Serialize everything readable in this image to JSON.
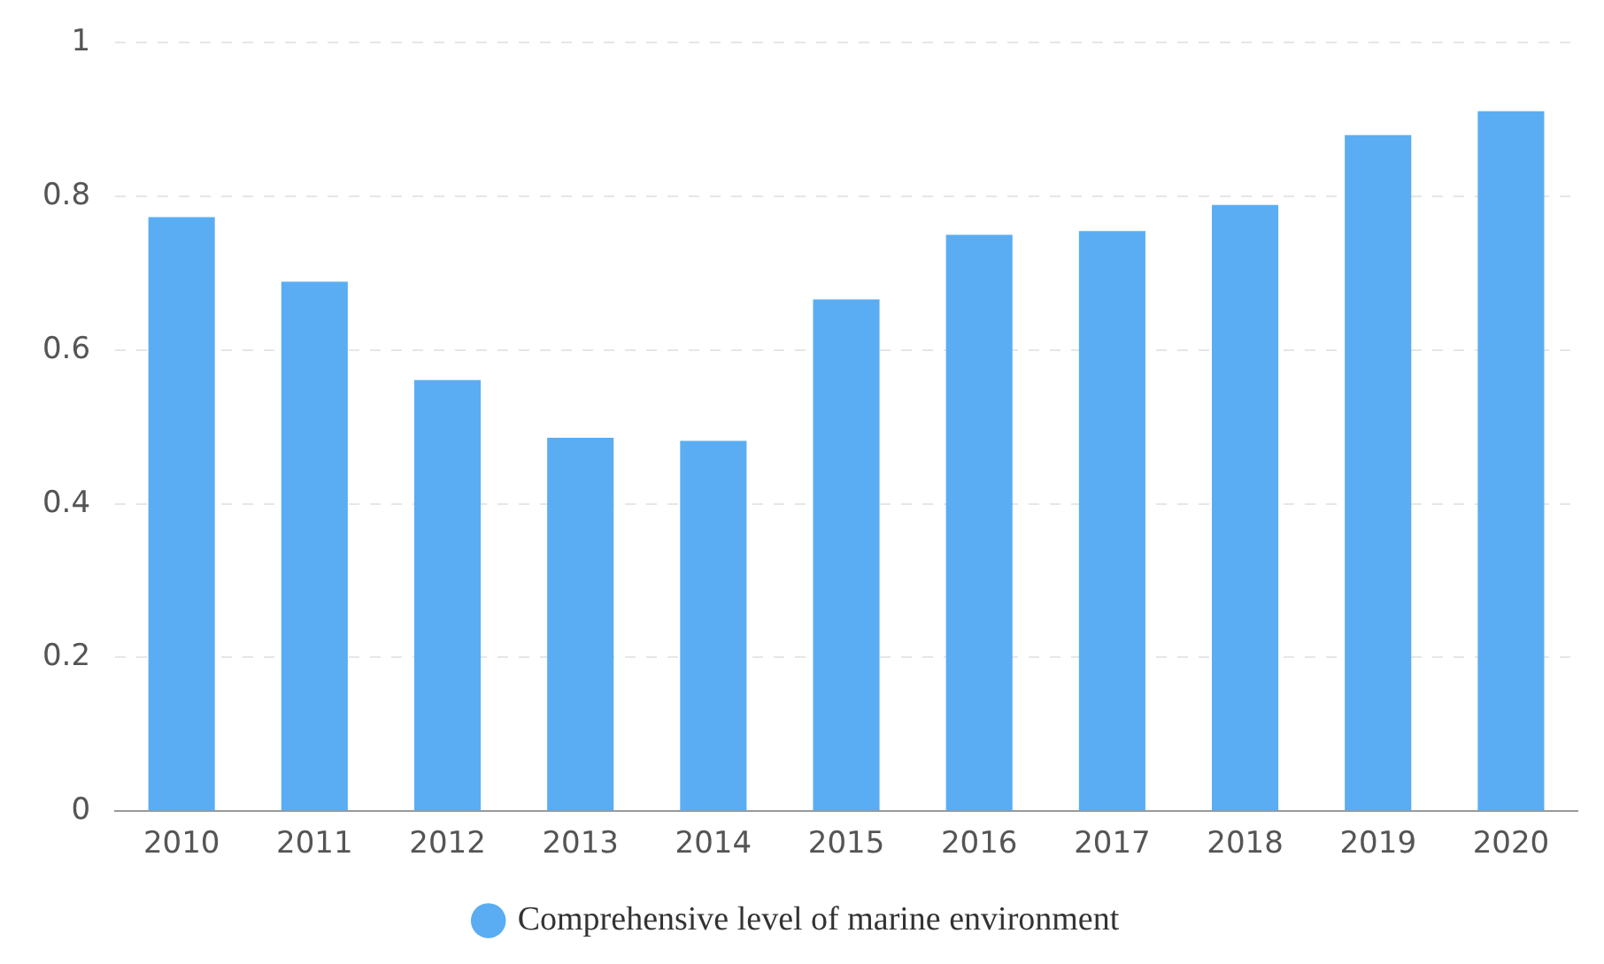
{
  "chart_data": {
    "type": "bar",
    "categories": [
      "2010",
      "2011",
      "2012",
      "2013",
      "2014",
      "2015",
      "2016",
      "2017",
      "2018",
      "2019",
      "2020"
    ],
    "series": [
      {
        "name": "Comprehensive level of marine environment",
        "color": "#5aadf2",
        "values": [
          0.773,
          0.689,
          0.561,
          0.486,
          0.482,
          0.666,
          0.75,
          0.755,
          0.789,
          0.88,
          0.911
        ]
      }
    ],
    "ylim": [
      0,
      1
    ],
    "yticks": [
      0,
      0.2,
      0.4,
      0.6,
      0.8,
      1
    ],
    "grid": "y",
    "legend": "bottom"
  }
}
